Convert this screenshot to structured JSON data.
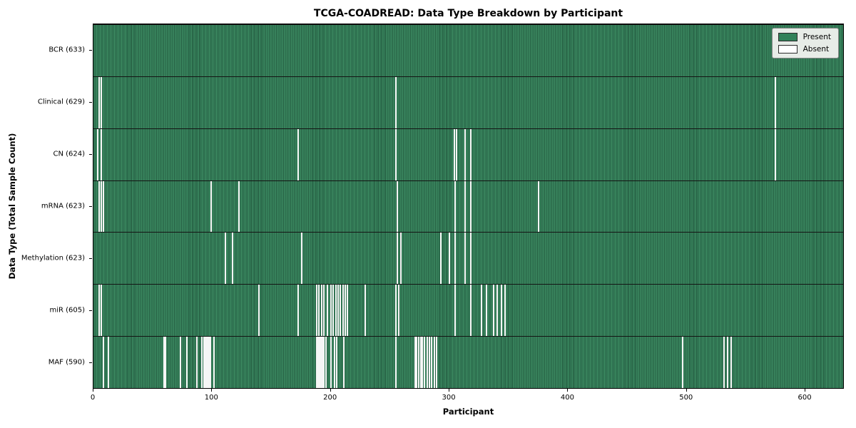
{
  "header": {
    "title": "TCGA-COADREAD: Data Type Breakdown by Participant"
  },
  "axes": {
    "xlabel": "Participant",
    "ylabel": "Data Type (Total Sample Count)"
  },
  "colors": {
    "present": "#318159",
    "absent": "#ffffff",
    "row_separator": "#141414",
    "legend_background": "#e7ece7"
  },
  "chart_data": {
    "type": "heatmap",
    "title": "TCGA-COADREAD: Data Type Breakdown by Participant",
    "xlabel": "Participant",
    "ylabel": "Data Type (Total Sample Count)",
    "x_range": [
      0,
      633
    ],
    "x_ticks": [
      0,
      100,
      200,
      300,
      400,
      500,
      600
    ],
    "grid": false,
    "legend_position": "upper right",
    "legend": [
      {
        "label": "Present",
        "color": "#318159"
      },
      {
        "label": "Absent",
        "color": "#ffffff"
      }
    ],
    "rows": [
      {
        "key": "bcr",
        "label": "BCR (633)",
        "total_samples": 633,
        "absent_participants": []
      },
      {
        "key": "clinical",
        "label": "Clinical (629)",
        "total_samples": 629,
        "absent_participants": [
          4,
          6,
          255,
          575
        ]
      },
      {
        "key": "cn",
        "label": "CN (624)",
        "total_samples": 624,
        "absent_participants": [
          3,
          6,
          172,
          255,
          304,
          306,
          313,
          318,
          575
        ]
      },
      {
        "key": "mrna",
        "label": "mRNA (623)",
        "total_samples": 623,
        "absent_participants": [
          4,
          6,
          8,
          99,
          122,
          256,
          305,
          313,
          318,
          375
        ]
      },
      {
        "key": "methylation",
        "label": "Methylation (623)",
        "total_samples": 623,
        "absent_participants": [
          111,
          117,
          175,
          256,
          259,
          293,
          300,
          305,
          313,
          318
        ]
      },
      {
        "key": "mir",
        "label": "miR (605)",
        "total_samples": 605,
        "absent_participants": [
          4,
          6,
          139,
          172,
          188,
          190,
          192,
          194,
          197,
          200,
          202,
          204,
          206,
          208,
          210,
          212,
          214,
          229,
          255,
          257,
          305,
          318,
          327,
          331,
          337,
          340,
          344,
          347
        ]
      },
      {
        "key": "maf",
        "label": "MAF (590)",
        "total_samples": 590,
        "absent_participants": [
          8,
          12,
          59,
          60,
          73,
          78,
          87,
          91,
          93,
          94,
          95,
          96,
          97,
          98,
          101,
          188,
          189,
          190,
          191,
          192,
          193,
          194,
          196,
          200,
          203,
          205,
          211,
          255,
          271,
          272,
          274,
          276,
          277,
          279,
          281,
          283,
          285,
          287,
          289,
          497,
          532,
          535,
          538
        ]
      }
    ]
  }
}
